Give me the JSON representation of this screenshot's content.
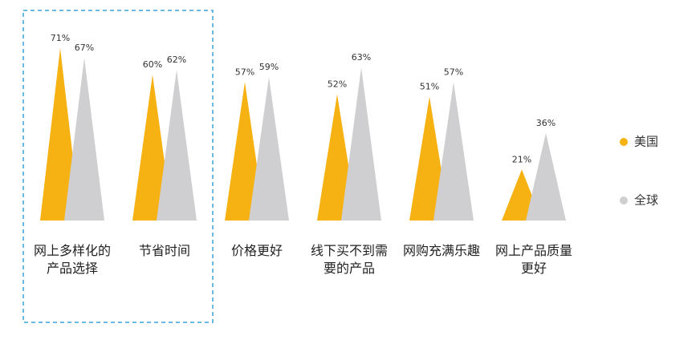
{
  "chart_data": {
    "type": "triangle",
    "categories": [
      "网上多样化的产品选择",
      "节省时间",
      "价格更好",
      "线下买不到需要的产品",
      "网购充满乐趣",
      "网上产品质量更好"
    ],
    "series": [
      {
        "name": "美国",
        "color": "#f6b112",
        "values": [
          71,
          60,
          57,
          52,
          51,
          21
        ],
        "value_labels": [
          "71%",
          "60%",
          "57%",
          "52%",
          "51%",
          "21%"
        ]
      },
      {
        "name": "全球",
        "color": "#cfcfd1",
        "values": [
          67,
          62,
          59,
          63,
          57,
          36
        ],
        "value_labels": [
          "67%",
          "62%",
          "59%",
          "63%",
          "57%",
          "36%"
        ]
      }
    ],
    "ylim": [
      0,
      100
    ]
  }
}
